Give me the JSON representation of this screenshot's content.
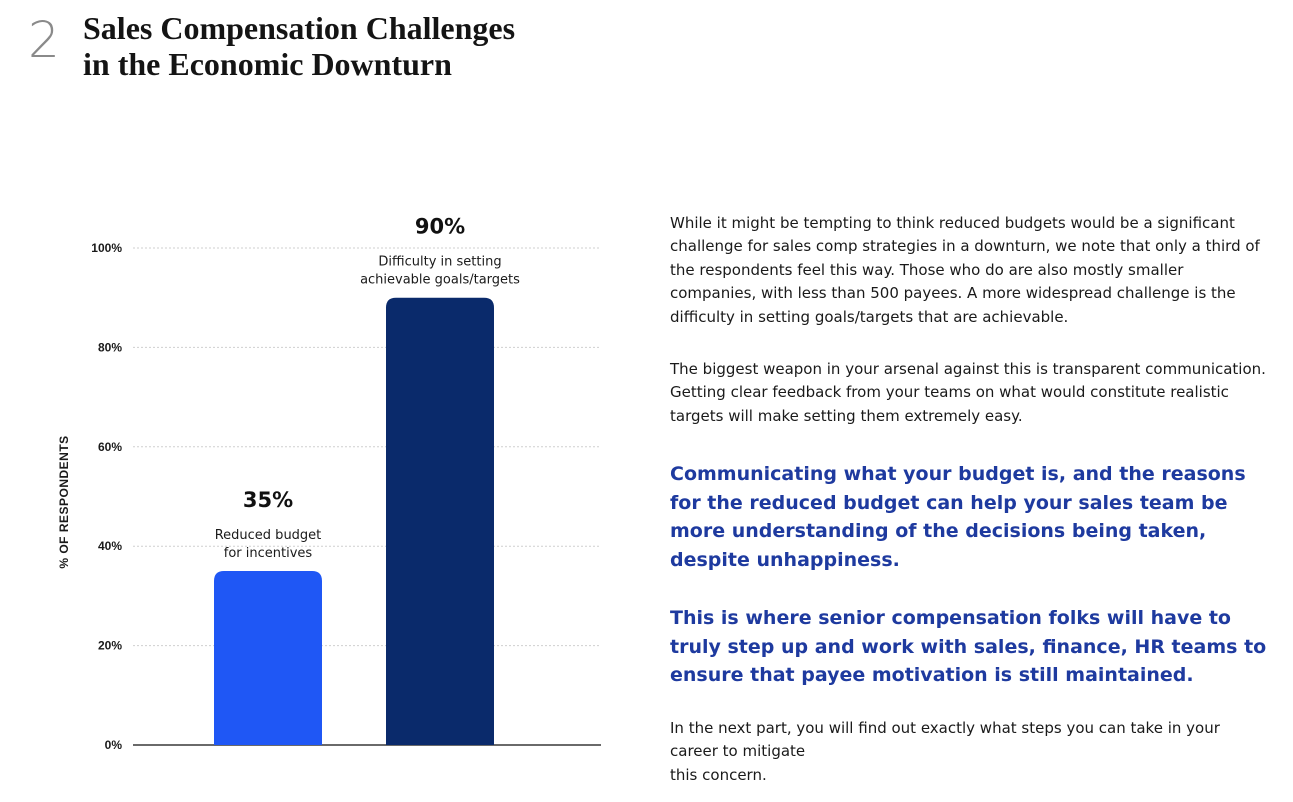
{
  "header": {
    "section_number": "2",
    "title_line1": "Sales Compensation Challenges",
    "title_line2": "in the Economic Downturn"
  },
  "colors": {
    "bar_light": "#1f57f5",
    "bar_dark": "#0a2a6b",
    "callout_text": "#1e3a9f",
    "gridline": "#cfcfcf"
  },
  "chart_data": {
    "type": "bar",
    "title": "",
    "xlabel": "",
    "ylabel": "% OF RESPONDENTS",
    "ylim": [
      0,
      100
    ],
    "yticks": [
      "0%",
      "20%",
      "40%",
      "60%",
      "80%",
      "100%"
    ],
    "ytick_values": [
      0,
      20,
      40,
      60,
      80,
      100
    ],
    "grid": true,
    "categories": [
      "Reduced budget for incentives",
      "Difficulty in setting achievable goals/targets"
    ],
    "values": [
      35,
      90
    ],
    "value_labels": [
      "35%",
      "90%"
    ],
    "bars": [
      {
        "value": 35,
        "value_label": "35%",
        "label_lines": [
          "Reduced budget",
          "for incentives"
        ],
        "color": "#1f57f5"
      },
      {
        "value": 90,
        "value_label": "90%",
        "label_lines": [
          "Difficulty in setting",
          "achievable goals/targets"
        ],
        "color": "#0a2a6b"
      }
    ]
  },
  "text": {
    "paragraph1": "While it might be tempting to think reduced budgets would be a significant challenge for sales comp strategies in a downturn, we note that only a third of the respondents feel this way. Those who do are also mostly smaller companies, with less than 500 payees. A more widespread challenge is the difficulty in setting goals/targets that are achievable.",
    "paragraph2": "The biggest weapon in your arsenal against this is transparent communication. Getting clear feedback from your teams on what would constitute realistic targets will make setting them extremely easy.",
    "callout1": "Communicating what your budget is, and the reasons for the reduced budget can help your sales team be more understanding of the decisions being taken, despite unhappiness.",
    "callout2": "This is where senior compensation folks will have to truly step up and work with sales, finance, HR teams to ensure that payee motivation is still maintained.",
    "paragraph3_line1": "In the next part, you will find out exactly what steps you can take in your career to mitigate",
    "paragraph3_line2": "this concern."
  }
}
